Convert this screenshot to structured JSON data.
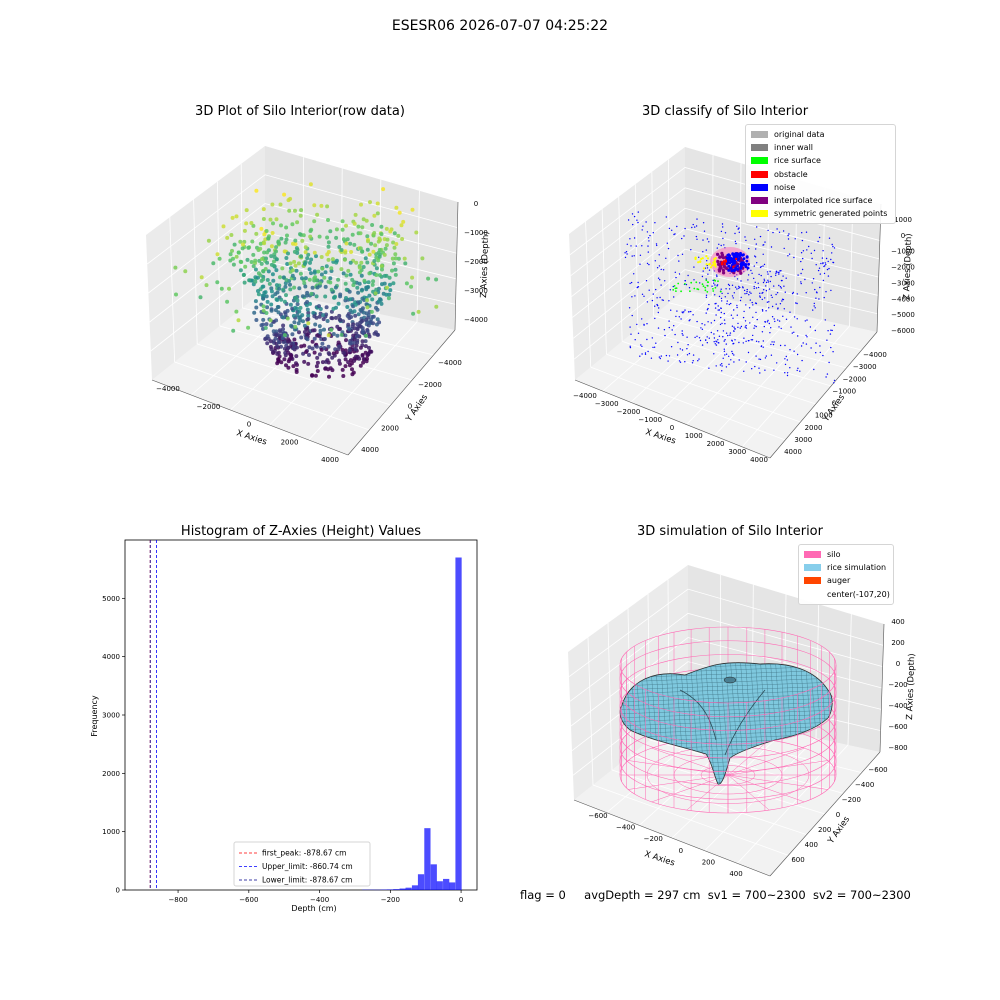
{
  "figure": {
    "suptitle": "ESESR06 2026-07-07 04:25:22",
    "footer": {
      "flag": "flag = 0",
      "avg_depth": "avgDepth = 297 cm",
      "sv1": "sv1 = 700~2300",
      "sv2": "sv2 = 700~2300"
    }
  },
  "chart_data": [
    {
      "type": "scatter",
      "projection": "3d",
      "title": "3D Plot of Silo Interior(row data)",
      "xlabel": "X Axies",
      "ylabel": "Y Axies",
      "zlabel": "Z Axies (Depth)",
      "x_ticks": [
        "−4000",
        "−2000",
        "0",
        "2000",
        "4000"
      ],
      "y_ticks": [
        "−4000",
        "−2000",
        "0",
        "2000",
        "4000"
      ],
      "z_ticks": [
        "0",
        "−1000",
        "−2000",
        "−3000",
        "−4000"
      ],
      "xlim": [
        -4500,
        4500
      ],
      "ylim": [
        -4500,
        4500
      ],
      "zlim": [
        -4500,
        0
      ],
      "colormap": "viridis",
      "point_count_estimate": 1200
    },
    {
      "type": "scatter",
      "projection": "3d",
      "title": "3D classify of Silo Interior",
      "xlabel": "X Axies",
      "ylabel": "Y Axies",
      "zlabel": "Z Axies (Depth)",
      "x_ticks": [
        "−4000",
        "−3000",
        "−2000",
        "−1000",
        "0",
        "1000",
        "2000",
        "3000",
        "4000"
      ],
      "y_ticks": [
        "−4000",
        "−3000",
        "−2000",
        "−1000",
        "0",
        "1000",
        "2000",
        "3000",
        "4000"
      ],
      "z_ticks": [
        "1000",
        "0",
        "−1000",
        "−2000",
        "−3000",
        "−4000",
        "−5000",
        "−6000"
      ],
      "legend_position": "top-right",
      "legend": [
        {
          "label": "original data",
          "color": "#b0b0b0"
        },
        {
          "label": "inner wall",
          "color": "#808080"
        },
        {
          "label": "rice surface",
          "color": "#00ff00"
        },
        {
          "label": "obstacle",
          "color": "#ff0000"
        },
        {
          "label": "noise",
          "color": "#0000ff"
        },
        {
          "label": "interpolated rice surface",
          "color": "#800080"
        },
        {
          "label": "symmetric generated points",
          "color": "#ffff00"
        }
      ]
    },
    {
      "type": "bar",
      "title": "Histogram of Z-Axies (Height) Values",
      "xlabel": "Depth (cm)",
      "ylabel": "Frequency",
      "xlim": [
        -950,
        45
      ],
      "ylim": [
        0,
        6000
      ],
      "x_ticks": [
        -800,
        -600,
        -400,
        -200,
        0
      ],
      "x_tick_labels": [
        "−800",
        "−600",
        "−400",
        "−200",
        "0"
      ],
      "y_ticks": [
        0,
        1000,
        2000,
        3000,
        4000,
        5000
      ],
      "y_tick_labels": [
        "0",
        "1000",
        "2000",
        "3000",
        "4000",
        "5000"
      ],
      "bar_color": "#0000ff",
      "bin_width": 17.6,
      "bins": [
        {
          "x": -280,
          "count": 6
        },
        {
          "x": -262,
          "count": 6
        },
        {
          "x": -245,
          "count": 5
        },
        {
          "x": -227,
          "count": 8
        },
        {
          "x": -210,
          "count": 10
        },
        {
          "x": -192,
          "count": 15
        },
        {
          "x": -174,
          "count": 25
        },
        {
          "x": -157,
          "count": 40
        },
        {
          "x": -139,
          "count": 80
        },
        {
          "x": -122,
          "count": 270
        },
        {
          "x": -104,
          "count": 1060
        },
        {
          "x": -86,
          "count": 440
        },
        {
          "x": -69,
          "count": 150
        },
        {
          "x": -51,
          "count": 190
        },
        {
          "x": -34,
          "count": 130
        },
        {
          "x": -16,
          "count": 5700
        }
      ],
      "vlines": [
        {
          "label": "first_peak: -878.67 cm",
          "x": -878.67,
          "color": "#ff0000"
        },
        {
          "label": "Upper_limit: -860.74 cm",
          "x": -860.74,
          "color": "#0000ff"
        },
        {
          "label": "Lower_limit: -878.67 cm",
          "x": -878.67,
          "color": "#00008b"
        }
      ],
      "legend_position": "lower center"
    },
    {
      "type": "surface",
      "projection": "3d",
      "title": "3D simulation of Silo Interior",
      "xlabel": "X Axies",
      "ylabel": "Y Axies",
      "zlabel": "Z Axies (Depth)",
      "x_ticks": [
        "−600",
        "−400",
        "−200",
        "0",
        "200",
        "400"
      ],
      "y_ticks": [
        "−600",
        "−400",
        "−200",
        "0",
        "200",
        "400",
        "600"
      ],
      "z_ticks": [
        "400",
        "200",
        "0",
        "−200",
        "−400",
        "−600",
        "−800"
      ],
      "legend_position": "top-right",
      "legend": [
        {
          "label": "silo",
          "color": "#ff69b4"
        },
        {
          "label": "rice simulation",
          "color": "#87ceeb"
        },
        {
          "label": "auger",
          "color": "#ff4500"
        },
        {
          "label": "center(-107,20)",
          "color": ""
        }
      ]
    }
  ]
}
